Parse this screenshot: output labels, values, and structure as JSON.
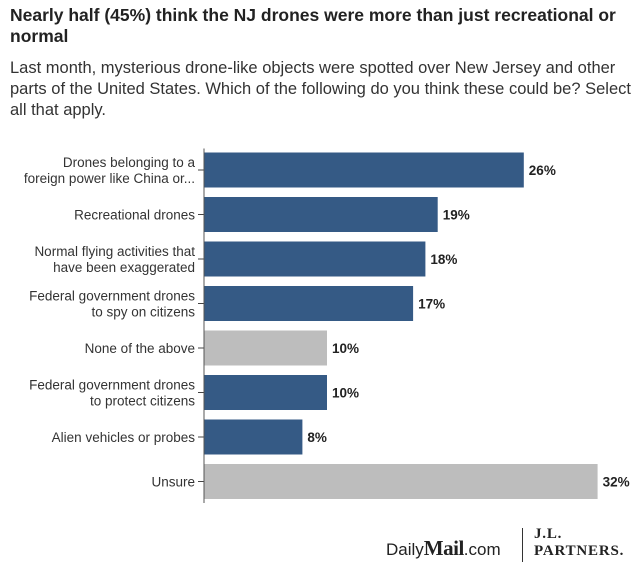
{
  "title": "Nearly half (45%) think the NJ drones were more than just recreational or normal",
  "subtitle": "Last month, mysterious drone-like objects were spotted over New Jersey and other parts of the United States. Which of the following do you think these could be? Select all that apply.",
  "colors": {
    "highlight": "#355a85",
    "neutral": "#bdbdbd"
  },
  "chart_data": {
    "type": "bar",
    "orientation": "horizontal",
    "categories": [
      [
        "Drones belonging to a",
        "foreign power like China or..."
      ],
      [
        "Recreational drones"
      ],
      [
        "Normal flying activities that",
        "have been exaggerated"
      ],
      [
        "Federal government drones",
        "to spy on citizens"
      ],
      [
        "None of the above"
      ],
      [
        "Federal government drones",
        "to protect citizens"
      ],
      [
        "Alien vehicles or probes"
      ],
      [
        "Unsure"
      ]
    ],
    "values": [
      26,
      19,
      18,
      17,
      10,
      10,
      8,
      32
    ],
    "value_labels": [
      "26%",
      "19%",
      "18%",
      "17%",
      "10%",
      "10%",
      "8%",
      "32%"
    ],
    "bar_colors": [
      "highlight",
      "highlight",
      "highlight",
      "highlight",
      "neutral",
      "highlight",
      "highlight",
      "neutral"
    ],
    "xlim": [
      0,
      32
    ],
    "grid": false,
    "legend": false
  },
  "branding": {
    "daily_prefix": "Daily",
    "daily_mail": "Mail",
    "daily_suffix": ".com",
    "jl_line1": "J.L.",
    "jl_line2": "PARTNERS."
  }
}
